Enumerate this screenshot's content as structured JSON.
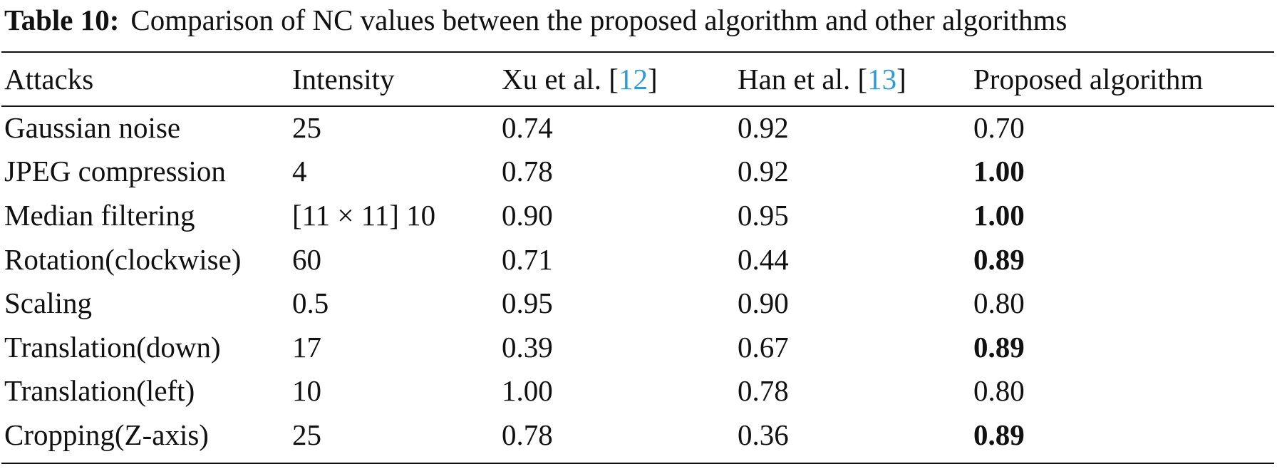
{
  "caption": {
    "label": "Table 10:",
    "text": "Comparison of NC values between the proposed algorithm and other algorithms"
  },
  "header": {
    "attacks": "Attacks",
    "intensity": "Intensity",
    "xu_prefix": "Xu et al. [",
    "xu_ref": "12",
    "xu_suffix": "]",
    "han_prefix": "Han et al. [",
    "han_ref": "13",
    "han_suffix": "]",
    "proposed": "Proposed algorithm"
  },
  "rows": [
    {
      "attack": "Gaussian noise",
      "intensity": "25",
      "xu": "0.74",
      "han": "0.92",
      "proposed": "0.70"
    },
    {
      "attack": "JPEG compression",
      "intensity": "4",
      "xu": "0.78",
      "han": "0.92",
      "proposed": "1.00"
    },
    {
      "attack": "Median filtering",
      "intensity": "[11 × 11] 10",
      "xu": "0.90",
      "han": "0.95",
      "proposed": "1.00"
    },
    {
      "attack": "Rotation(clockwise)",
      "intensity": "60",
      "xu": "0.71",
      "han": "0.44",
      "proposed": "0.89"
    },
    {
      "attack": "Scaling",
      "intensity": "0.5",
      "xu": "0.95",
      "han": "0.90",
      "proposed": "0.80"
    },
    {
      "attack": "Translation(down)",
      "intensity": "17",
      "xu": "0.39",
      "han": "0.67",
      "proposed": "0.89"
    },
    {
      "attack": "Translation(left)",
      "intensity": "10",
      "xu": "1.00",
      "han": "0.78",
      "proposed": "0.80"
    },
    {
      "attack": "Cropping(Z-axis)",
      "intensity": "25",
      "xu": "0.78",
      "han": "0.36",
      "proposed": "0.89"
    }
  ],
  "colors": {
    "text": "#111111",
    "citation_link": "#2e9bd6"
  }
}
